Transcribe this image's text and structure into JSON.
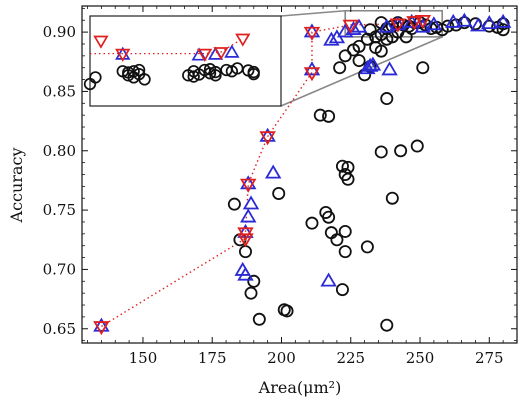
{
  "chart_data": {
    "type": "scatter",
    "xlabel": "Area(μm²)",
    "ylabel": "Accuracy",
    "xlim": [
      128,
      285
    ],
    "ylim": [
      0.638,
      0.922
    ],
    "xticks": [
      150,
      175,
      200,
      225,
      250,
      275
    ],
    "yticks": [
      0.65,
      0.7,
      0.75,
      0.8,
      0.85,
      0.9
    ],
    "xtick_labels": [
      "150",
      "175",
      "200",
      "225",
      "250",
      "275"
    ],
    "ytick_labels": [
      "0.65",
      "0.70",
      "0.75",
      "0.80",
      "0.85",
      "0.90"
    ],
    "grid": false,
    "colors": {
      "circle": "#111111",
      "triangle_up": "#2a2ad6",
      "triangle_down": "#e0201e",
      "pareto_line": "#e0201e",
      "inset_border": "#888888"
    },
    "series": [
      {
        "marker": "circle",
        "points": [
          [
            183,
            0.755
          ],
          [
            185,
            0.725
          ],
          [
            187,
            0.715
          ],
          [
            189,
            0.68
          ],
          [
            190,
            0.69
          ],
          [
            192,
            0.658
          ],
          [
            201,
            0.666
          ],
          [
            202,
            0.665
          ],
          [
            199,
            0.764
          ],
          [
            211,
            0.739
          ],
          [
            214,
            0.83
          ],
          [
            217,
            0.829
          ],
          [
            216,
            0.748
          ],
          [
            217,
            0.744
          ],
          [
            218,
            0.731
          ],
          [
            220,
            0.725
          ],
          [
            223,
            0.715
          ],
          [
            222,
            0.683
          ],
          [
            223,
            0.732
          ],
          [
            222,
            0.787
          ],
          [
            224,
            0.786
          ],
          [
            223,
            0.78
          ],
          [
            224,
            0.776
          ],
          [
            231,
            0.719
          ],
          [
            236,
            0.799
          ],
          [
            238,
            0.653
          ],
          [
            240,
            0.76
          ],
          [
            243,
            0.8
          ],
          [
            249,
            0.804
          ],
          [
            238,
            0.844
          ],
          [
            251,
            0.87
          ],
          [
            221,
            0.87
          ],
          [
            223,
            0.88
          ],
          [
            226,
            0.885
          ],
          [
            228,
            0.876
          ],
          [
            230,
            0.864
          ],
          [
            232,
            0.871
          ],
          [
            234,
            0.887
          ],
          [
            228,
            0.888
          ],
          [
            231,
            0.894
          ],
          [
            234,
            0.896
          ],
          [
            236,
            0.898
          ],
          [
            238,
            0.894
          ],
          [
            240,
            0.896
          ],
          [
            242,
            0.9
          ],
          [
            245,
            0.896
          ],
          [
            247,
            0.903
          ],
          [
            240,
            0.905
          ],
          [
            242,
            0.908
          ],
          [
            244,
            0.906
          ],
          [
            246,
            0.905
          ],
          [
            248,
            0.908
          ],
          [
            250,
            0.908
          ],
          [
            252,
            0.906
          ],
          [
            238,
            0.903
          ],
          [
            232,
            0.902
          ],
          [
            236,
            0.908
          ],
          [
            254,
            0.903
          ],
          [
            256,
            0.904
          ],
          [
            258,
            0.902
          ],
          [
            260,
            0.905
          ],
          [
            263,
            0.906
          ],
          [
            266,
            0.908
          ],
          [
            270,
            0.907
          ],
          [
            275,
            0.905
          ],
          [
            278,
            0.904
          ],
          [
            280,
            0.902
          ],
          [
            280,
            0.907
          ],
          [
            236,
            0.884
          ]
        ]
      },
      {
        "marker": "triangle-up",
        "points": [
          [
            135,
            0.652
          ],
          [
            186,
            0.699
          ],
          [
            187,
            0.695
          ],
          [
            187,
            0.731
          ],
          [
            188,
            0.744
          ],
          [
            189,
            0.755
          ],
          [
            188,
            0.772
          ],
          [
            197,
            0.781
          ],
          [
            195,
            0.812
          ],
          [
            211,
            0.868
          ],
          [
            211,
            0.9
          ],
          [
            218,
            0.893
          ],
          [
            220,
            0.895
          ],
          [
            223,
            0.9
          ],
          [
            226,
            0.902
          ],
          [
            228,
            0.904
          ],
          [
            231,
            0.869
          ],
          [
            233,
            0.872
          ],
          [
            232,
            0.871
          ],
          [
            239,
            0.868
          ],
          [
            238,
            0.904
          ],
          [
            242,
            0.906
          ],
          [
            247,
            0.908
          ],
          [
            251,
            0.904
          ],
          [
            255,
            0.906
          ],
          [
            262,
            0.908
          ],
          [
            266,
            0.909
          ],
          [
            271,
            0.905
          ],
          [
            275,
            0.907
          ],
          [
            280,
            0.908
          ],
          [
            217,
            0.69
          ]
        ]
      },
      {
        "marker": "triangle-down",
        "points": [
          [
            135,
            0.652
          ],
          [
            187,
            0.726
          ],
          [
            187,
            0.731
          ],
          [
            188,
            0.772
          ],
          [
            195,
            0.812
          ],
          [
            211,
            0.866
          ],
          [
            211,
            0.9
          ],
          [
            225,
            0.906
          ],
          [
            242,
            0.907
          ],
          [
            248,
            0.909
          ],
          [
            251,
            0.91
          ]
        ]
      }
    ],
    "pareto_line": {
      "x": [
        135,
        187,
        187,
        188,
        195,
        211,
        211,
        225,
        242,
        248,
        251
      ],
      "y": [
        0.652,
        0.726,
        0.731,
        0.772,
        0.812,
        0.866,
        0.9,
        0.906,
        0.907,
        0.909,
        0.91
      ]
    },
    "inset": {
      "zoom_region": {
        "x": [
          223,
          258
        ],
        "y": [
          0.896,
          0.918
        ]
      },
      "xlim": [
        223,
        258
      ],
      "ylim": [
        0.896,
        0.918
      ],
      "circles": [
        [
          224,
          0.903
        ],
        [
          229,
          0.9045
        ],
        [
          230,
          0.9042
        ],
        [
          230,
          0.9035
        ],
        [
          231,
          0.9045
        ],
        [
          232,
          0.9048
        ],
        [
          232,
          0.9038
        ],
        [
          231,
          0.903
        ],
        [
          233,
          0.9025
        ],
        [
          241,
          0.9035
        ],
        [
          242,
          0.9045
        ],
        [
          242,
          0.9032
        ],
        [
          243,
          0.9037
        ],
        [
          244,
          0.9048
        ],
        [
          245,
          0.905
        ],
        [
          245,
          0.904
        ],
        [
          246,
          0.9043
        ],
        [
          246,
          0.9035
        ],
        [
          248,
          0.9048
        ],
        [
          249,
          0.9045
        ],
        [
          250,
          0.9052
        ],
        [
          252,
          0.9047
        ],
        [
          253,
          0.9043
        ],
        [
          253,
          0.9038
        ]
      ],
      "triangles_up": [
        [
          229,
          0.9085
        ],
        [
          243,
          0.9083
        ],
        [
          246,
          0.9085
        ],
        [
          249,
          0.909
        ]
      ],
      "triangles_down": [
        [
          225,
          0.912
        ],
        [
          229,
          0.9088
        ],
        [
          244,
          0.9088
        ],
        [
          247,
          0.9092
        ],
        [
          251,
          0.9125
        ]
      ],
      "line": {
        "x": [
          223,
          229,
          244,
          247,
          251
        ],
        "y": [
          0.9088,
          0.9088,
          0.9088,
          0.9092,
          0.9125
        ]
      }
    }
  }
}
